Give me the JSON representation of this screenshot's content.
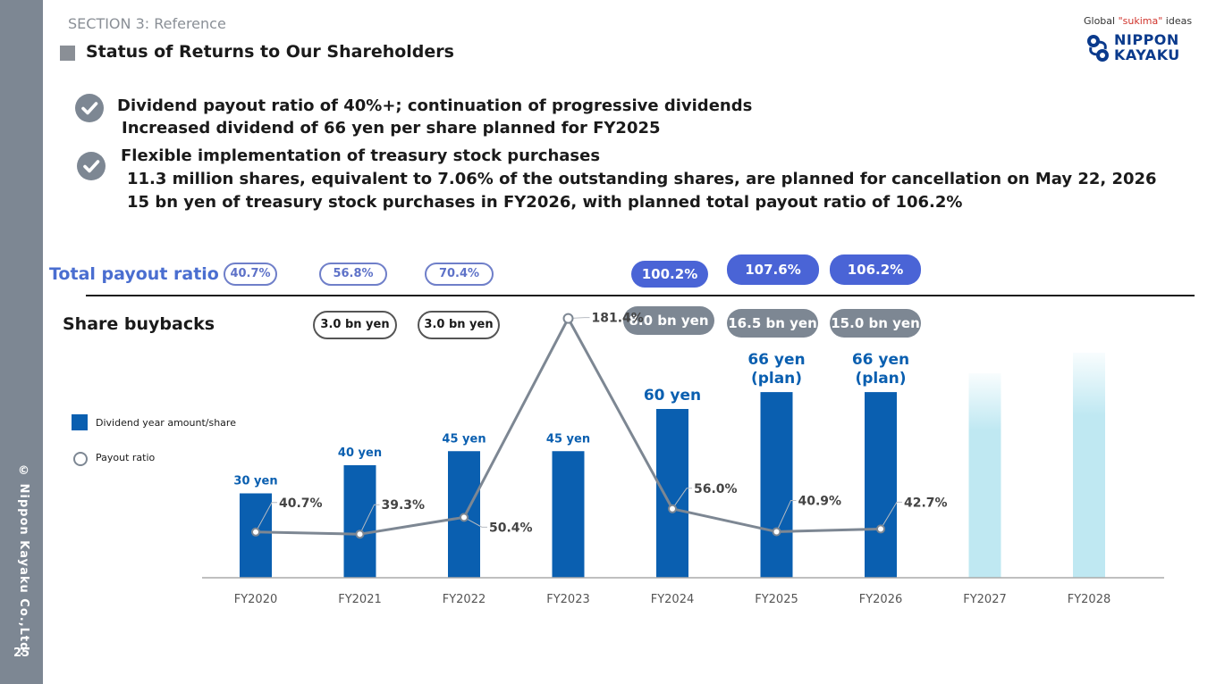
{
  "sidebar": {
    "copyright": "© Nippon Kayaku Co.,Ltd.",
    "page_number": "25"
  },
  "header": {
    "section": "SECTION 3: Reference",
    "title": "Status of Returns to Our Shareholders",
    "logo": {
      "tagline_pre": "Global ",
      "tagline_accent": "\"sukima\"",
      "tagline_post": " ideas",
      "line1": "NIPPON",
      "line2": "KAYAKU"
    }
  },
  "bullets": [
    {
      "icon": "check-icon",
      "head": "Dividend payout ratio of 40%+; continuation of progressive dividends",
      "subs": [
        "Increased dividend of 66 yen per share planned for FY2025"
      ]
    },
    {
      "icon": "check-icon",
      "head": "Flexible implementation of treasury stock purchases",
      "subs": [
        "11.3 million shares, equivalent to 7.06% of the outstanding shares, are planned for cancellation on May 22, 2026",
        "15 bn yen of treasury stock purchases in FY2026, with planned total payout ratio of 106.2%"
      ]
    }
  ],
  "rows": {
    "payout_label": "Total payout ratio",
    "buyback_label": "Share buybacks",
    "payout": [
      "40.7%",
      "56.8%",
      "70.4%",
      "100.2%",
      "107.6%",
      "106.2%"
    ],
    "buyback": [
      "3.0 bn yen",
      "3.0 bn yen",
      "8.0 bn yen",
      "16.5 bn yen",
      "15.0 bn yen"
    ]
  },
  "legend": {
    "bar": "Dividend year amount/share",
    "line": "Payout ratio"
  },
  "colors": {
    "bar": "#0a5fb0",
    "future_bar": "#bfe8f2",
    "line": "#7d8793",
    "payout_pill": "#4a64d6",
    "buyback_pill": "#7d8793"
  },
  "chart_data": {
    "type": "bar",
    "categories": [
      "FY2020",
      "FY2021",
      "FY2022",
      "FY2023",
      "FY2024",
      "FY2025",
      "FY2026",
      "FY2027",
      "FY2028"
    ],
    "series": [
      {
        "name": "Dividend year amount/share",
        "type": "bar",
        "values": [
          30,
          40,
          45,
          45,
          60,
          66,
          66,
          null,
          null
        ],
        "labels": [
          "30 yen",
          "40 yen",
          "45 yen",
          "45 yen",
          "60 yen",
          "66 yen\n(plan)",
          "66 yen\n(plan)",
          "",
          ""
        ]
      },
      {
        "name": "Payout ratio",
        "type": "line",
        "values": [
          40.7,
          39.3,
          50.4,
          181.4,
          56.0,
          40.9,
          42.7,
          null,
          null
        ],
        "labels": [
          "40.7%",
          "39.3%",
          "50.4%",
          "181.4%",
          "56.0%",
          "40.9%",
          "42.7%",
          "",
          ""
        ]
      }
    ],
    "future_categories": [
      "FY2027",
      "FY2028"
    ]
  }
}
